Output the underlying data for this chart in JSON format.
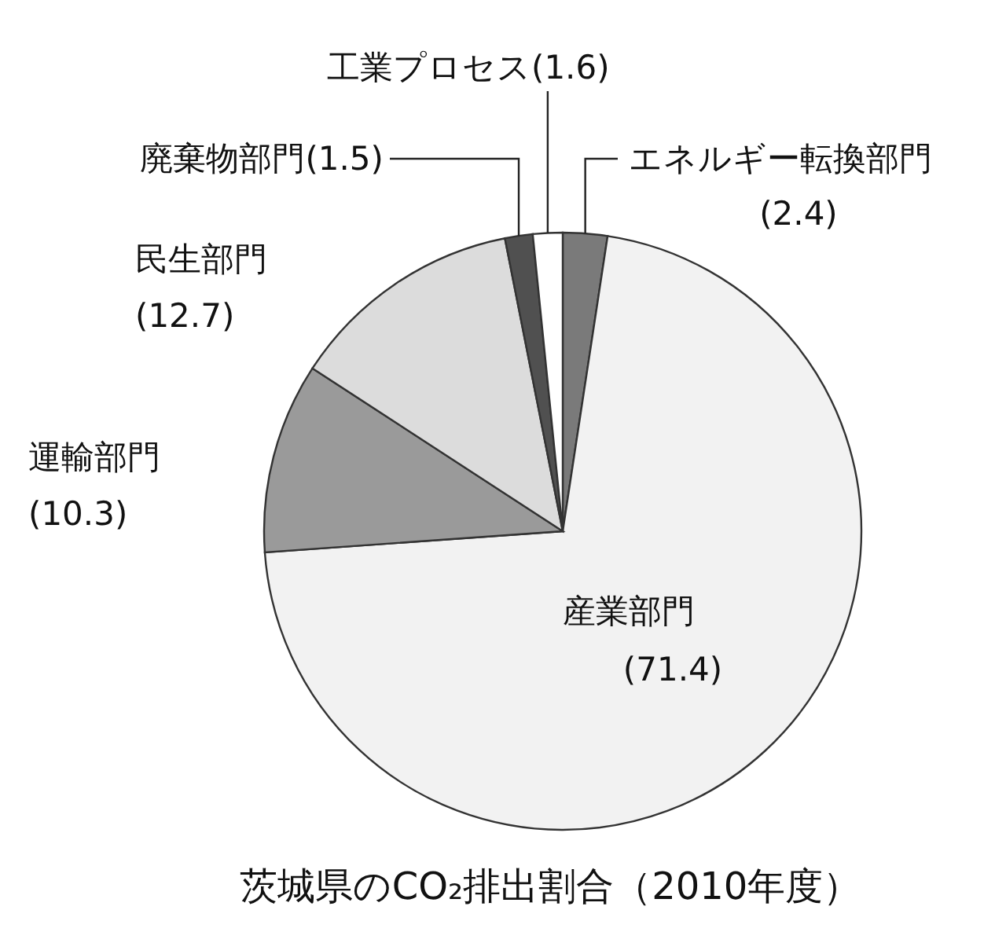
{
  "chart_data": {
    "type": "pie",
    "title": "茨城県のCO₂排出割合（2010年度）",
    "categories": [
      "エネルギー転換部門",
      "産業部門",
      "運輸部門",
      "民生部門",
      "廃棄物部門",
      "工業プロセス"
    ],
    "values": [
      2.4,
      71.4,
      10.3,
      12.7,
      1.5,
      1.6
    ],
    "value_labels": [
      "(2.4)",
      "(71.4)",
      "(10.3)",
      "(12.7)",
      "(1.5)",
      "(1.6)"
    ],
    "colors": [
      "#7a7a7a",
      "#f2f2f2",
      "#9a9a9a",
      "#dcdcdc",
      "#505050",
      "#ffffff"
    ],
    "legend": false
  }
}
